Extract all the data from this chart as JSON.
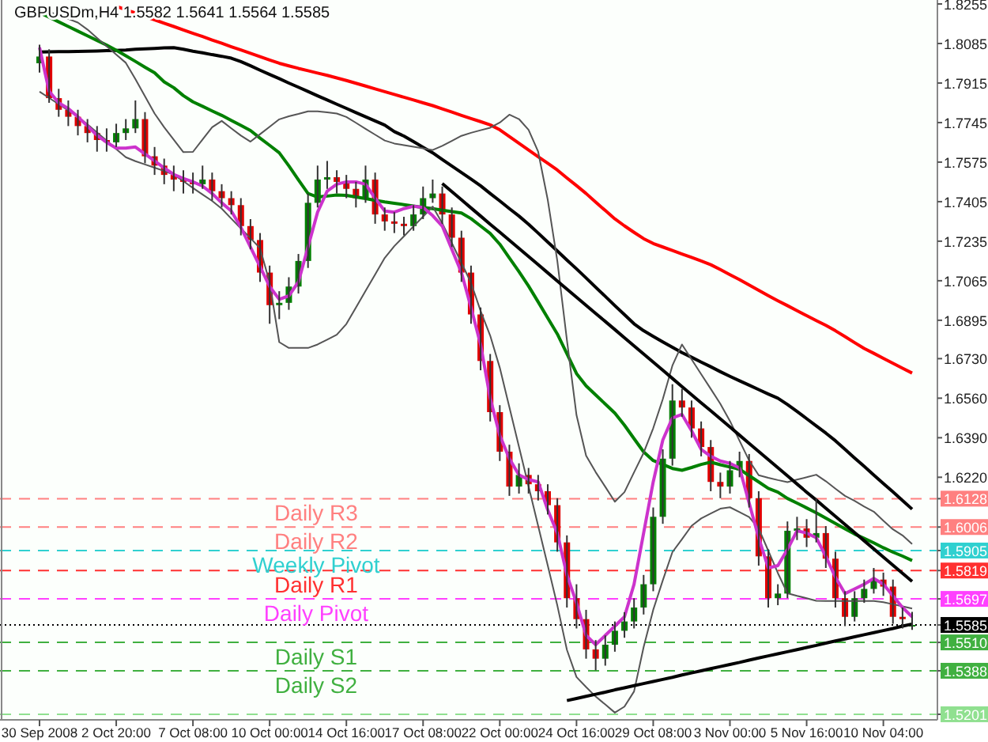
{
  "chart_data": {
    "type": "candlestick",
    "title": "GBPUSDm,H4 1.5582 1.5641 1.5564 1.5585",
    "categories": [
      "30 Sep 2008",
      null,
      null,
      null,
      null,
      null,
      null,
      null,
      "2 Oct 20:00",
      null,
      null,
      null,
      null,
      null,
      null,
      null,
      "7 Oct 08:00",
      null,
      null,
      null,
      null,
      null,
      null,
      null,
      "10 Oct 00:00",
      null,
      null,
      null,
      null,
      null,
      null,
      null,
      "14 Oct 16:00",
      null,
      null,
      null,
      null,
      null,
      null,
      null,
      "17 Oct 08:00",
      null,
      null,
      null,
      null,
      null,
      null,
      null,
      "22 Oct 00:00",
      null,
      null,
      null,
      null,
      null,
      null,
      null,
      "24 Oct 16:00",
      null,
      null,
      null,
      null,
      null,
      null,
      null,
      "29 Oct 08:00",
      null,
      null,
      null,
      null,
      null,
      null,
      null,
      "3 Nov 00:00",
      null,
      null,
      null,
      null,
      null,
      null,
      null,
      "5 Nov 16:00",
      null,
      null,
      null,
      null,
      null,
      null,
      null,
      "10 Nov 04:00",
      null,
      null,
      null
    ],
    "ohlc": [
      [
        1.8,
        1.808,
        1.796,
        1.8029
      ],
      [
        1.8029,
        1.806,
        1.783,
        1.785
      ],
      [
        1.785,
        1.789,
        1.777,
        1.78
      ],
      [
        1.78,
        1.784,
        1.773,
        1.777
      ],
      [
        1.777,
        1.78,
        1.769,
        1.773
      ],
      [
        1.773,
        1.776,
        1.766,
        1.77
      ],
      [
        1.77,
        1.773,
        1.762,
        1.767
      ],
      [
        1.767,
        1.772,
        1.762,
        1.766
      ],
      [
        1.766,
        1.774,
        1.764,
        1.77
      ],
      [
        1.77,
        1.776,
        1.767,
        1.772
      ],
      [
        1.772,
        1.784,
        1.77,
        1.776
      ],
      [
        1.776,
        1.779,
        1.757,
        1.76
      ],
      [
        1.76,
        1.764,
        1.752,
        1.756
      ],
      [
        1.756,
        1.759,
        1.748,
        1.752
      ],
      [
        1.752,
        1.756,
        1.745,
        1.75
      ],
      [
        1.75,
        1.754,
        1.744,
        1.749
      ],
      [
        1.749,
        1.753,
        1.744,
        1.748
      ],
      [
        1.748,
        1.756,
        1.746,
        1.75
      ],
      [
        1.75,
        1.753,
        1.741,
        1.745
      ],
      [
        1.745,
        1.748,
        1.738,
        1.742
      ],
      [
        1.742,
        1.745,
        1.735,
        1.739
      ],
      [
        1.739,
        1.742,
        1.726,
        1.73
      ],
      [
        1.73,
        1.733,
        1.72,
        1.724
      ],
      [
        1.724,
        1.727,
        1.706,
        1.71
      ],
      [
        1.71,
        1.713,
        1.688,
        1.696
      ],
      [
        1.696,
        1.702,
        1.69,
        1.697
      ],
      [
        1.697,
        1.708,
        1.694,
        1.704
      ],
      [
        1.704,
        1.718,
        1.701,
        1.715
      ],
      [
        1.715,
        1.744,
        1.712,
        1.74
      ],
      [
        1.74,
        1.756,
        1.738,
        1.75
      ],
      [
        1.75,
        1.758,
        1.746,
        1.751
      ],
      [
        1.751,
        1.754,
        1.744,
        1.749
      ],
      [
        1.749,
        1.752,
        1.742,
        1.746
      ],
      [
        1.746,
        1.749,
        1.738,
        1.742
      ],
      [
        1.742,
        1.756,
        1.74,
        1.75
      ],
      [
        1.75,
        1.753,
        1.731,
        1.735
      ],
      [
        1.735,
        1.738,
        1.728,
        1.732
      ],
      [
        1.732,
        1.736,
        1.727,
        1.731
      ],
      [
        1.731,
        1.734,
        1.726,
        1.73
      ],
      [
        1.73,
        1.739,
        1.728,
        1.735
      ],
      [
        1.735,
        1.747,
        1.733,
        1.742
      ],
      [
        1.742,
        1.75,
        1.74,
        1.744
      ],
      [
        1.744,
        1.747,
        1.731,
        1.735
      ],
      [
        1.735,
        1.738,
        1.721,
        1.725
      ],
      [
        1.725,
        1.728,
        1.706,
        1.71
      ],
      [
        1.71,
        1.713,
        1.688,
        1.692
      ],
      [
        1.692,
        1.695,
        1.668,
        1.672
      ],
      [
        1.672,
        1.675,
        1.646,
        1.65
      ],
      [
        1.65,
        1.653,
        1.629,
        1.633
      ],
      [
        1.633,
        1.636,
        1.614,
        1.618
      ],
      [
        1.618,
        1.628,
        1.615,
        1.623
      ],
      [
        1.623,
        1.626,
        1.615,
        1.619
      ],
      [
        1.619,
        1.623,
        1.612,
        1.616
      ],
      [
        1.616,
        1.619,
        1.606,
        1.61
      ],
      [
        1.61,
        1.613,
        1.59,
        1.594
      ],
      [
        1.594,
        1.597,
        1.566,
        1.57
      ],
      [
        1.57,
        1.576,
        1.557,
        1.561
      ],
      [
        1.561,
        1.565,
        1.544,
        1.548
      ],
      [
        1.548,
        1.552,
        1.539,
        1.544
      ],
      [
        1.544,
        1.554,
        1.541,
        1.55
      ],
      [
        1.55,
        1.56,
        1.547,
        1.556
      ],
      [
        1.556,
        1.564,
        1.553,
        1.56
      ],
      [
        1.56,
        1.57,
        1.557,
        1.566
      ],
      [
        1.566,
        1.58,
        1.563,
        1.576
      ],
      [
        1.576,
        1.609,
        1.573,
        1.605
      ],
      [
        1.605,
        1.634,
        1.602,
        1.63
      ],
      [
        1.63,
        1.662,
        1.627,
        1.655
      ],
      [
        1.655,
        1.66,
        1.648,
        1.652
      ],
      [
        1.652,
        1.655,
        1.639,
        1.643
      ],
      [
        1.643,
        1.646,
        1.631,
        1.635
      ],
      [
        1.635,
        1.638,
        1.616,
        1.62
      ],
      [
        1.62,
        1.624,
        1.613,
        1.618
      ],
      [
        1.618,
        1.629,
        1.615,
        1.625
      ],
      [
        1.625,
        1.633,
        1.622,
        1.629
      ],
      [
        1.629,
        1.632,
        1.609,
        1.613
      ],
      [
        1.613,
        1.616,
        1.584,
        1.588
      ],
      [
        1.588,
        1.591,
        1.566,
        1.57
      ],
      [
        1.57,
        1.576,
        1.567,
        1.572
      ],
      [
        1.572,
        1.603,
        1.57,
        1.599
      ],
      [
        1.599,
        1.605,
        1.595,
        1.6
      ],
      [
        1.6,
        1.604,
        1.592,
        1.596
      ],
      [
        1.596,
        1.613,
        1.594,
        1.598
      ],
      [
        1.598,
        1.601,
        1.583,
        1.587
      ],
      [
        1.587,
        1.59,
        1.566,
        1.57
      ],
      [
        1.57,
        1.573,
        1.558,
        1.562
      ],
      [
        1.562,
        1.573,
        1.56,
        1.57
      ],
      [
        1.57,
        1.578,
        1.568,
        1.574
      ],
      [
        1.574,
        1.583,
        1.572,
        1.578
      ],
      [
        1.578,
        1.581,
        1.571,
        1.575
      ],
      [
        1.575,
        1.578,
        1.559,
        1.562
      ],
      [
        1.562,
        1.566,
        1.557,
        1.561
      ],
      [
        1.5582,
        1.5641,
        1.5564,
        1.5585
      ]
    ],
    "colors": [
      "#008000",
      "#e00000",
      "#e00000",
      "#e00000",
      "#e00000",
      "#e00000",
      "#e00000",
      "#e00000",
      "#008000",
      "#008000",
      "#008000",
      "#e00000",
      "#e00000",
      "#e00000",
      "#e00000",
      "#e00000",
      "#e00000",
      "#008000",
      "#e00000",
      "#e00000",
      "#e00000",
      "#e00000",
      "#e00000",
      "#e00000",
      "#e00000",
      "#008000",
      "#008000",
      "#008000",
      "#008000",
      "#008000",
      "#008000",
      "#e00000",
      "#e00000",
      "#e00000",
      "#008000",
      "#e00000",
      "#e00000",
      "#e00000",
      "#e00000",
      "#008000",
      "#008000",
      "#008000",
      "#e00000",
      "#e00000",
      "#e00000",
      "#e00000",
      "#e00000",
      "#e00000",
      "#e00000",
      "#e00000",
      "#008000",
      "#e00000",
      "#e00000",
      "#e00000",
      "#e00000",
      "#e00000",
      "#e00000",
      "#e00000",
      "#e00000",
      "#008000",
      "#008000",
      "#008000",
      "#008000",
      "#008000",
      "#008000",
      "#008000",
      "#008000",
      "#e00000",
      "#e00000",
      "#e00000",
      "#e00000",
      "#e00000",
      "#008000",
      "#008000",
      "#e00000",
      "#e00000",
      "#e00000",
      "#008000",
      "#008000",
      "#008000",
      "#e00000",
      "#008000",
      "#e00000",
      "#e00000",
      "#e00000",
      "#008000",
      "#008000",
      "#008000",
      "#e00000",
      "#e00000",
      "#e00000",
      "#008000"
    ],
    "series": [
      {
        "type": "line",
        "color": "#ff0000",
        "values": [
          null,
          null,
          null,
          null,
          null,
          null,
          null,
          null,
          1.8245,
          1.823,
          1.8216,
          1.8201,
          1.8187,
          1.8172,
          1.8158,
          1.8143,
          1.8129,
          1.8115,
          1.81,
          1.8086,
          1.8071,
          1.8057,
          1.8043,
          1.8028,
          1.8014,
          1.8,
          1.7989,
          1.7978,
          1.7968,
          1.7958,
          1.7948,
          1.7937,
          1.7926,
          1.7914,
          1.7902,
          1.789,
          1.7878,
          1.7866,
          1.7854,
          1.7842,
          1.783,
          1.7818,
          1.7804,
          1.779,
          1.7776,
          1.7762,
          1.7749,
          1.7735,
          1.7714,
          1.7685,
          1.7656,
          1.7627,
          1.7598,
          1.757,
          1.7541,
          1.7507,
          1.7474,
          1.744,
          1.7403,
          1.7367,
          1.7331,
          1.7301,
          1.7273,
          1.7246,
          1.7225,
          1.721,
          1.7195,
          1.718,
          1.7165,
          1.715,
          1.7134,
          1.7113,
          1.7091,
          1.707,
          1.7047,
          1.7024,
          1.7001,
          1.6979,
          1.6958,
          1.6936,
          1.6915,
          1.6894,
          1.6873,
          1.685,
          1.6825,
          1.6799,
          1.6774,
          1.6753,
          1.6731,
          1.671,
          1.6689,
          1.6668
        ]
      },
      {
        "type": "line",
        "color": "#000000",
        "values": [
          1.8048,
          1.8049,
          1.805,
          1.805,
          1.8051,
          1.8052,
          1.8053,
          1.8054,
          1.8055,
          1.8057,
          1.806,
          1.8062,
          1.8064,
          1.8066,
          1.8067,
          1.806,
          1.8052,
          1.8045,
          1.8037,
          1.803,
          1.8022,
          1.8007,
          1.7989,
          1.797,
          1.7952,
          1.7934,
          1.7915,
          1.7897,
          1.7879,
          1.786,
          1.7842,
          1.7824,
          1.7806,
          1.7788,
          1.777,
          1.7752,
          1.7734,
          1.7706,
          1.7687,
          1.7663,
          1.7639,
          1.7615,
          1.7586,
          1.7558,
          1.753,
          1.7502,
          1.7473,
          1.744,
          1.7408,
          1.7375,
          1.7343,
          1.7308,
          1.727,
          1.7231,
          1.7193,
          1.7154,
          1.7116,
          1.7077,
          1.7037,
          1.6998,
          1.6958,
          1.6919,
          1.688,
          1.685,
          1.6826,
          1.6802,
          1.6779,
          1.6756,
          1.6736,
          1.6715,
          1.6695,
          1.6674,
          1.6654,
          1.6635,
          1.6616,
          1.6597,
          1.6578,
          1.656,
          1.6533,
          1.6503,
          1.6472,
          1.6441,
          1.641,
          1.6377,
          1.634,
          1.6303,
          1.6267,
          1.623,
          1.6193,
          1.6157,
          1.612,
          1.6083
        ]
      },
      {
        "type": "line",
        "color": "#008000",
        "values": [
          1.8218,
          1.8198,
          1.8178,
          1.8158,
          1.8138,
          1.8118,
          1.8098,
          1.8078,
          1.8056,
          1.8032,
          1.8008,
          1.7983,
          1.7959,
          1.792,
          1.7895,
          1.7861,
          1.7834,
          1.7815,
          1.7795,
          1.7776,
          1.7754,
          1.7733,
          1.7711,
          1.7678,
          1.7647,
          1.7615,
          1.7559,
          1.7499,
          1.744,
          1.7425,
          1.7429,
          1.7434,
          1.7432,
          1.7425,
          1.7418,
          1.7411,
          1.7404,
          1.7398,
          1.7392,
          1.7386,
          1.738,
          1.7375,
          1.7368,
          1.7362,
          1.7356,
          1.7332,
          1.73,
          1.7268,
          1.7222,
          1.7163,
          1.7104,
          1.7042,
          1.6974,
          1.6905,
          1.6836,
          1.6751,
          1.6666,
          1.6613,
          1.6574,
          1.6535,
          1.6496,
          1.6444,
          1.6386,
          1.6329,
          1.6292,
          1.6275,
          1.6258,
          1.625,
          1.6262,
          1.6275,
          1.6285,
          1.6274,
          1.6264,
          1.6255,
          1.6227,
          1.62,
          1.6172,
          1.6156,
          1.6129,
          1.6109,
          1.6088,
          1.6067,
          1.6044,
          1.6021,
          1.5998,
          1.5976,
          1.5957,
          1.5938,
          1.5917,
          1.5898,
          1.5881,
          1.5862
        ]
      },
      {
        "type": "line",
        "color": "#555555",
        "values": [
          1.8238,
          1.8222,
          1.8206,
          1.8191,
          1.8175,
          1.8145,
          1.8109,
          1.8073,
          1.8037,
          1.8002,
          1.7932,
          1.7858,
          1.7784,
          1.7725,
          1.7671,
          1.7618,
          1.7619,
          1.7672,
          1.7725,
          1.7752,
          1.772,
          1.7689,
          1.7663,
          1.7695,
          1.7727,
          1.7759,
          1.7772,
          1.7782,
          1.7793,
          1.7793,
          1.7789,
          1.7784,
          1.7769,
          1.7744,
          1.7718,
          1.7693,
          1.7668,
          1.7655,
          1.7648,
          1.7641,
          1.7634,
          1.7627,
          1.7645,
          1.7666,
          1.7688,
          1.7701,
          1.7712,
          1.7723,
          1.7745,
          1.7779,
          1.776,
          1.7714,
          1.762,
          1.7413,
          1.715,
          1.681,
          1.6487,
          1.6313,
          1.6242,
          1.6179,
          1.6115,
          1.6156,
          1.6241,
          1.6325,
          1.6431,
          1.6556,
          1.67,
          1.6791,
          1.6727,
          1.6663,
          1.66,
          1.6536,
          1.6462,
          1.6377,
          1.6292,
          1.6229,
          1.6218,
          1.6208,
          1.6199,
          1.621,
          1.622,
          1.6231,
          1.6203,
          1.6171,
          1.614,
          1.6119,
          1.6094,
          1.6072,
          1.6033,
          1.5996,
          1.597,
          1.5933
        ]
      },
      {
        "type": "line",
        "color": "#555555",
        "values": [
          1.7878,
          1.7851,
          1.7824,
          1.7797,
          1.777,
          1.7737,
          1.7702,
          1.7667,
          1.7631,
          1.7596,
          1.7579,
          1.7565,
          1.7551,
          1.7537,
          1.7521,
          1.7493,
          1.7464,
          1.7436,
          1.7408,
          1.7375,
          1.7332,
          1.729,
          1.7248,
          1.7205,
          1.7057,
          1.6801,
          1.6776,
          1.6776,
          1.6776,
          1.6791,
          1.6812,
          1.6833,
          1.6879,
          1.695,
          1.7021,
          1.7092,
          1.7163,
          1.7214,
          1.7256,
          1.7299,
          1.7341,
          1.7384,
          1.7312,
          1.7227,
          1.7142,
          1.7056,
          1.6935,
          1.6829,
          1.6691,
          1.6521,
          1.6351,
          1.6181,
          1.6011,
          1.5841,
          1.5669,
          1.5478,
          1.5361,
          1.5318,
          1.5277,
          1.5243,
          1.5208,
          1.5234,
          1.5299,
          1.549,
          1.565,
          1.5777,
          1.5898,
          1.5954,
          1.6011,
          1.6043,
          1.6064,
          1.6085,
          1.6091,
          1.607,
          1.6049,
          1.6,
          1.5904,
          1.5808,
          1.5721,
          1.571,
          1.57,
          1.5689,
          1.5688,
          1.5688,
          1.5688,
          1.5688,
          1.5688,
          1.5688,
          1.5683,
          1.5674,
          1.5665,
          1.5656
        ]
      },
      {
        "type": "line",
        "color": "#cc33cc",
        "values": [
          1.8068,
          1.788,
          1.783,
          1.7805,
          1.777,
          1.773,
          1.769,
          1.766,
          1.7635,
          1.7635,
          1.764,
          1.761,
          1.758,
          1.755,
          1.7522,
          1.7505,
          1.749,
          1.7472,
          1.744,
          1.74,
          1.7365,
          1.7295,
          1.721,
          1.7125,
          1.704,
          1.6985,
          1.7,
          1.706,
          1.721,
          1.736,
          1.745,
          1.748,
          1.749,
          1.749,
          1.748,
          1.742,
          1.7365,
          1.736,
          1.7375,
          1.7385,
          1.738,
          1.7345,
          1.73,
          1.72,
          1.71,
          1.695,
          1.679,
          1.656,
          1.64,
          1.63,
          1.623,
          1.621,
          1.62,
          1.608,
          1.598,
          1.58,
          1.568,
          1.554,
          1.55,
          1.554,
          1.558,
          1.562,
          1.576,
          1.598,
          1.62,
          1.638,
          1.6475,
          1.649,
          1.642,
          1.634,
          1.631,
          1.629,
          1.628,
          1.626,
          1.611,
          1.596,
          1.583,
          1.584,
          1.591,
          1.599,
          1.598,
          1.596,
          1.588,
          1.579,
          1.572,
          1.574,
          1.576,
          1.5785,
          1.576,
          1.571,
          1.566,
          1.562
        ]
      },
      {
        "type": "line",
        "color": "#000000",
        "values": [
          null,
          null,
          null,
          null,
          null,
          null,
          null,
          null,
          null,
          null,
          null,
          null,
          null,
          null,
          null,
          null,
          null,
          null,
          null,
          null,
          null,
          null,
          null,
          null,
          null,
          null,
          null,
          null,
          null,
          null,
          null,
          null,
          null,
          null,
          null,
          null,
          null,
          null,
          null,
          null,
          null,
          null,
          1.7483,
          1.7448,
          1.7413,
          1.7378,
          1.7343,
          1.7308,
          1.7274,
          1.7239,
          1.7204,
          1.7169,
          1.7134,
          1.7099,
          1.7064,
          1.7029,
          1.6994,
          1.6959,
          1.6924,
          1.689,
          1.6855,
          1.682,
          1.6785,
          1.675,
          1.6715,
          1.668,
          1.6645,
          1.661,
          1.6575,
          1.654,
          1.6506,
          1.6471,
          1.6436,
          1.6401,
          1.6366,
          1.6331,
          1.6296,
          1.6261,
          1.6226,
          1.6191,
          1.6156,
          1.6122,
          1.6087,
          1.6052,
          1.6017,
          1.5982,
          1.5947,
          1.5912,
          1.5877,
          1.5842,
          1.5807,
          1.5772
        ]
      },
      {
        "type": "line",
        "color": "#000000",
        "values": [
          null,
          null,
          null,
          null,
          null,
          null,
          null,
          null,
          null,
          null,
          null,
          null,
          null,
          null,
          null,
          null,
          null,
          null,
          null,
          null,
          null,
          null,
          null,
          null,
          null,
          null,
          null,
          null,
          null,
          null,
          null,
          null,
          null,
          null,
          null,
          null,
          null,
          null,
          null,
          null,
          null,
          null,
          null,
          null,
          null,
          null,
          null,
          null,
          null,
          null,
          null,
          null,
          null,
          null,
          null,
          1.526,
          1.5269,
          1.5278,
          1.5287,
          1.5296,
          1.5306,
          1.5315,
          1.5324,
          1.5333,
          1.5342,
          1.5351,
          1.536,
          1.537,
          1.5379,
          1.5388,
          1.5397,
          1.5406,
          1.5415,
          1.5424,
          1.5434,
          1.5443,
          1.5452,
          1.5461,
          1.547,
          1.5479,
          1.5488,
          1.5497,
          1.5507,
          1.5516,
          1.5525,
          1.5534,
          1.5543,
          1.5552,
          1.5561,
          1.557,
          1.558,
          1.5589
        ]
      }
    ],
    "ref_lines": [
      {
        "axis": "y",
        "value": 1.6128,
        "label": "Daily R3",
        "color": "#ff8080",
        "line_style": "dashed"
      },
      {
        "axis": "y",
        "value": 1.6006,
        "label": "Daily R2",
        "color": "#ff8080",
        "line_style": "dashed"
      },
      {
        "axis": "y",
        "value": 1.5905,
        "label": "Weekly Pivot",
        "color": "#30d0d0",
        "line_style": "dashed"
      },
      {
        "axis": "y",
        "value": 1.5819,
        "label": "Daily R1",
        "color": "#ff3030",
        "line_style": "dashed"
      },
      {
        "axis": "y",
        "value": 1.5697,
        "label": "Daily Pivot",
        "color": "#ff40ff",
        "line_style": "dashed"
      },
      {
        "axis": "y",
        "value": 1.5585,
        "label": null,
        "color": "#000000",
        "line_style": "dotted"
      },
      {
        "axis": "y",
        "value": 1.551,
        "label": "Daily S1",
        "color": "#40b040",
        "line_style": "dashed"
      },
      {
        "axis": "y",
        "value": 1.5388,
        "label": "Daily S2",
        "color": "#40b040",
        "line_style": "dashed"
      },
      {
        "axis": "y",
        "value": 1.5201,
        "label": null,
        "color": "#90e090",
        "line_style": "dashed"
      }
    ],
    "ylim": [
      1.5177,
      1.8272
    ],
    "yticks": [
      1.8255,
      1.8085,
      1.7915,
      1.7745,
      1.7575,
      1.7405,
      1.7235,
      1.7065,
      1.6895,
      {
        "value": 1.673,
        "label": "1.6730"
      },
      {
        "value": 1.656,
        "label": "1.6560"
      },
      {
        "value": 1.639,
        "label": "1.6390"
      },
      {
        "value": 1.622,
        "label": "1.6220"
      },
      1.6128,
      1.6006,
      1.5905,
      1.5819,
      1.5697,
      1.5585,
      {
        "value": 1.551,
        "label": "1.5510"
      },
      1.5388,
      1.5201
    ],
    "grid": false
  }
}
